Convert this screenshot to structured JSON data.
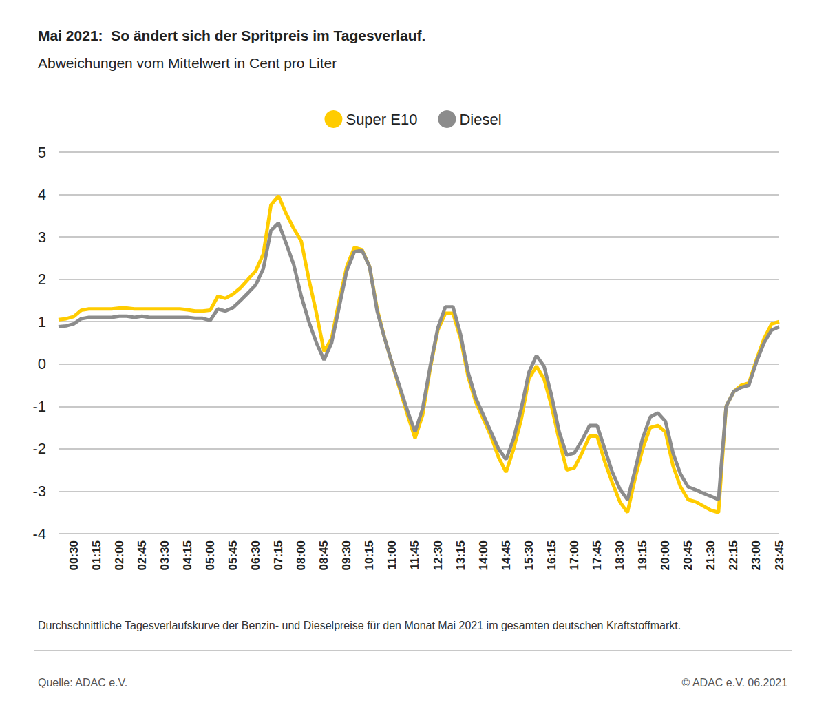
{
  "chart_data": {
    "type": "line",
    "title": "Mai 2021:  So ändert sich der Spritpreis im Tagesverlauf.",
    "subtitle": "Abweichungen vom Mittelwert in Cent pro Liter",
    "note": "Durchschnittliche Tagesverlaufskurve der Benzin- und Dieselpreise für den Monat Mai 2021 im gesamten deutschen Kraftstoffmarkt.",
    "source": "Quelle: ADAC e.V.",
    "copyright": "© ADAC e.V. 06.2021",
    "categories": [
      null,
      null,
      "00:30",
      null,
      null,
      "01:15",
      null,
      null,
      "02:00",
      null,
      null,
      "02:45",
      null,
      null,
      "03:30",
      null,
      null,
      "04:15",
      null,
      null,
      "05:00",
      null,
      null,
      "05:45",
      null,
      null,
      "06:30",
      null,
      null,
      "07:15",
      null,
      null,
      "08:00",
      null,
      null,
      "08:45",
      null,
      null,
      "09:30",
      null,
      null,
      "10:15",
      null,
      null,
      "11:00",
      null,
      null,
      "11:45",
      null,
      null,
      "12:30",
      null,
      null,
      "13:15",
      null,
      null,
      "14:00",
      null,
      null,
      "14:45",
      null,
      null,
      "15:30",
      null,
      null,
      "16:15",
      null,
      null,
      "17:00",
      null,
      null,
      "17:45",
      null,
      null,
      "18:30",
      null,
      null,
      "19:15",
      null,
      null,
      "20:00",
      null,
      null,
      "20:45",
      null,
      null,
      "21:30",
      null,
      null,
      "22:15",
      null,
      null,
      "23:00",
      null,
      null,
      "23:45"
    ],
    "series": [
      {
        "name": "Super E10",
        "color": "#ffcc00",
        "values": [
          1.05,
          1.07,
          1.12,
          1.27,
          1.3,
          1.3,
          1.3,
          1.3,
          1.32,
          1.32,
          1.3,
          1.3,
          1.3,
          1.3,
          1.3,
          1.3,
          1.3,
          1.28,
          1.25,
          1.25,
          1.27,
          1.6,
          1.55,
          1.65,
          1.8,
          2.0,
          2.2,
          2.6,
          3.75,
          3.97,
          3.55,
          3.2,
          2.9,
          2.0,
          1.2,
          0.3,
          0.6,
          1.5,
          2.3,
          2.75,
          2.7,
          2.3,
          1.3,
          0.6,
          0.0,
          -0.6,
          -1.2,
          -1.75,
          -1.2,
          -0.1,
          0.8,
          1.2,
          1.2,
          0.6,
          -0.3,
          -0.9,
          -1.3,
          -1.7,
          -2.2,
          -2.55,
          -2.0,
          -1.3,
          -0.35,
          -0.05,
          -0.35,
          -1.0,
          -1.8,
          -2.5,
          -2.45,
          -2.1,
          -1.7,
          -1.7,
          -2.3,
          -2.8,
          -3.25,
          -3.5,
          -2.7,
          -2.0,
          -1.5,
          -1.45,
          -1.6,
          -2.4,
          -2.9,
          -3.2,
          -3.25,
          -3.35,
          -3.45,
          -3.5,
          -1.0,
          -0.65,
          -0.5,
          -0.45,
          0.1,
          0.6,
          0.95,
          1.0
        ]
      },
      {
        "name": "Diesel",
        "color": "#8c8c8c",
        "values": [
          0.88,
          0.9,
          0.95,
          1.07,
          1.1,
          1.1,
          1.1,
          1.1,
          1.13,
          1.13,
          1.1,
          1.13,
          1.1,
          1.1,
          1.1,
          1.1,
          1.1,
          1.1,
          1.08,
          1.08,
          1.03,
          1.3,
          1.25,
          1.33,
          1.5,
          1.68,
          1.87,
          2.25,
          3.15,
          3.33,
          2.85,
          2.35,
          1.6,
          1.0,
          0.5,
          0.1,
          0.5,
          1.35,
          2.2,
          2.65,
          2.68,
          2.3,
          1.25,
          0.6,
          0.0,
          -0.55,
          -1.1,
          -1.6,
          -1.05,
          -0.05,
          0.85,
          1.35,
          1.35,
          0.7,
          -0.2,
          -0.8,
          -1.2,
          -1.6,
          -2.0,
          -2.25,
          -1.75,
          -1.05,
          -0.2,
          0.2,
          -0.05,
          -0.75,
          -1.6,
          -2.15,
          -2.1,
          -1.8,
          -1.45,
          -1.45,
          -2.0,
          -2.55,
          -2.95,
          -3.2,
          -2.5,
          -1.75,
          -1.25,
          -1.15,
          -1.35,
          -2.1,
          -2.6,
          -2.9,
          -2.97,
          -3.05,
          -3.12,
          -3.2,
          -1.0,
          -0.65,
          -0.55,
          -0.5,
          0.05,
          0.5,
          0.8,
          0.88
        ]
      }
    ],
    "ylim": [
      -4,
      5
    ],
    "yticks": [
      -4,
      -3,
      -2,
      -1,
      0,
      1,
      2,
      3,
      4,
      5
    ],
    "grid": true,
    "legend": "top"
  }
}
